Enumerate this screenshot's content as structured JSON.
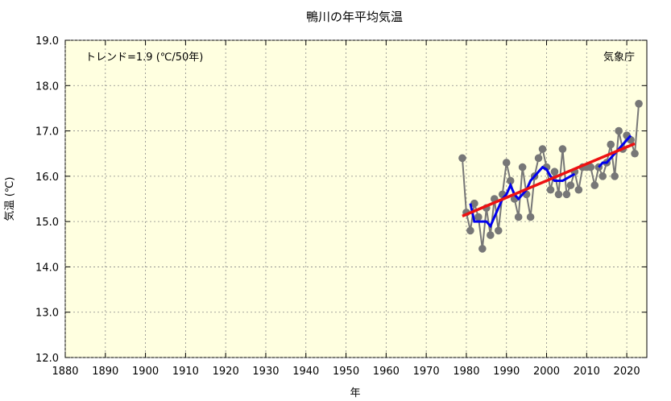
{
  "chart_data": {
    "type": "line",
    "title": "鴨川の年平均気温",
    "xlabel": "年",
    "ylabel": "気温 (℃)",
    "xlim": [
      1880,
      2025
    ],
    "ylim": [
      12.0,
      19.0
    ],
    "x_ticks": [
      "1880",
      "1890",
      "1900",
      "1910",
      "1920",
      "1930",
      "1940",
      "1950",
      "1960",
      "1970",
      "1980",
      "1990",
      "2000",
      "2010",
      "2020"
    ],
    "y_ticks": [
      "12.0",
      "13.0",
      "14.0",
      "15.0",
      "16.0",
      "17.0",
      "18.0",
      "19.0"
    ],
    "grid": true,
    "annotation_trend": "トレンド=1.9 (℃/50年)",
    "source_label": "気象庁",
    "colors": {
      "background": "#ffffe0",
      "annual": "#777777",
      "moving_average": "#0000ee",
      "trend": "#ee1111"
    },
    "series": [
      {
        "kind": "annual",
        "x": [
          1979,
          1980,
          1981,
          1982,
          1983,
          1984,
          1985,
          1986,
          1987,
          1988,
          1989,
          1990,
          1991,
          1992,
          1993,
          1994,
          1995,
          1996,
          1997,
          1998,
          1999,
          2000,
          2001,
          2002,
          2003,
          2004,
          2005,
          2006,
          2007,
          2008,
          2009,
          2010,
          2011,
          2012,
          2013,
          2014,
          2015,
          2016,
          2017,
          2018,
          2019,
          2020,
          2021,
          2022,
          2023
        ],
        "values": [
          16.4,
          15.2,
          14.8,
          15.4,
          15.1,
          14.4,
          15.3,
          14.7,
          15.5,
          14.8,
          15.6,
          16.3,
          15.9,
          15.5,
          15.1,
          16.2,
          15.6,
          15.1,
          16.0,
          16.4,
          16.6,
          16.2,
          15.7,
          16.1,
          15.6,
          16.6,
          15.6,
          15.8,
          16.1,
          15.7,
          16.2,
          16.2,
          16.2,
          15.8,
          16.2,
          16.0,
          16.3,
          16.7,
          16.0,
          17.0,
          16.6,
          16.9,
          16.8,
          16.5,
          17.6
        ]
      },
      {
        "kind": "moving-average",
        "x": [
          1981,
          1982,
          1983,
          1984,
          1985,
          1986,
          1987,
          1988,
          1989,
          1990,
          1991,
          1992,
          1993,
          1994,
          1995,
          1996,
          1997,
          1998,
          1999,
          2000,
          2001,
          2002,
          2003,
          2004,
          2005,
          2006,
          2007,
          2013,
          2014,
          2015,
          2016,
          2017,
          2018,
          2019,
          2020,
          2021
        ],
        "values": [
          15.4,
          15.0,
          15.0,
          15.0,
          15.0,
          14.9,
          15.1,
          15.3,
          15.5,
          15.6,
          15.8,
          15.6,
          15.5,
          15.6,
          15.7,
          15.9,
          16.0,
          16.1,
          16.2,
          16.15,
          16.0,
          15.9,
          15.9,
          15.9,
          15.95,
          16.0,
          16.05,
          16.2,
          16.3,
          16.3,
          16.4,
          16.5,
          16.6,
          16.7,
          16.8,
          16.9
        ]
      },
      {
        "kind": "trend",
        "x": [
          1979,
          2022
        ],
        "values": [
          15.12,
          16.72
        ]
      }
    ]
  }
}
